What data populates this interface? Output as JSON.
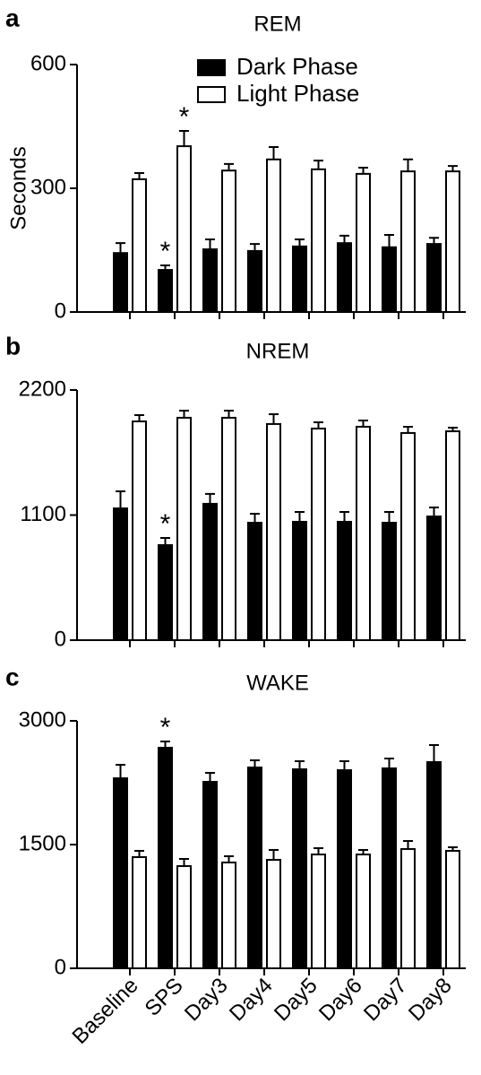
{
  "chart_data": [
    {
      "type": "bar",
      "panel": "a",
      "title": "REM",
      "y_label": "Seconds",
      "legend": "top",
      "ylim": [
        0,
        600
      ],
      "yticks": [
        0,
        300,
        600
      ],
      "series": [
        {
          "name": "Dark Phase",
          "color": "#000000",
          "values": [
            143,
            102,
            152,
            148,
            159,
            167,
            157,
            165
          ],
          "errors": [
            24,
            11,
            24,
            17,
            17,
            18,
            30,
            15
          ],
          "labels": [
            null,
            "*",
            null,
            null,
            null,
            null,
            null,
            null
          ]
        },
        {
          "name": "Light Phase",
          "color": "#ffffff",
          "values": [
            322,
            402,
            343,
            370,
            346,
            335,
            341,
            341
          ],
          "errors": [
            15,
            37,
            16,
            30,
            21,
            15,
            29,
            13
          ],
          "labels": [
            null,
            "*",
            null,
            null,
            null,
            null,
            null,
            null
          ]
        }
      ]
    },
    {
      "type": "bar",
      "panel": "b",
      "title": "NREM",
      "ylim": [
        0,
        2200
      ],
      "yticks": [
        0,
        1100,
        2200
      ],
      "series": [
        {
          "color": "#000000",
          "values": [
            1159,
            836,
            1199,
            1033,
            1041,
            1041,
            1033,
            1088
          ],
          "errors": [
            150,
            63,
            87,
            79,
            87,
            87,
            95,
            79
          ],
          "labels": [
            null,
            "*",
            null,
            null,
            null,
            null,
            null,
            null
          ]
        },
        {
          "color": "#ffffff",
          "values": [
            1924,
            1956,
            1956,
            1901,
            1861,
            1877,
            1822,
            1837
          ],
          "errors": [
            55,
            63,
            63,
            86,
            55,
            55,
            55,
            32
          ]
        }
      ]
    },
    {
      "type": "bar",
      "panel": "c",
      "title": "WAKE",
      "categories": [
        "Baseline",
        "SPS",
        "Day3",
        "Day4",
        "Day5",
        "Day6",
        "Day7",
        "Day8"
      ],
      "ylim": [
        0,
        3000
      ],
      "yticks": [
        0,
        1500,
        3000
      ],
      "series": [
        {
          "color": "#000000",
          "values": [
            2304,
            2674,
            2261,
            2435,
            2413,
            2402,
            2424,
            2500
          ],
          "errors": [
            163,
            76,
            109,
            87,
            98,
            109,
            120,
            207
          ],
          "labels": [
            null,
            "*",
            null,
            null,
            null,
            null,
            null,
            null
          ]
        },
        {
          "color": "#ffffff",
          "values": [
            1348,
            1239,
            1283,
            1315,
            1380,
            1380,
            1446,
            1424
          ],
          "errors": [
            76,
            87,
            76,
            120,
            76,
            55,
            97,
            43
          ]
        }
      ]
    }
  ]
}
